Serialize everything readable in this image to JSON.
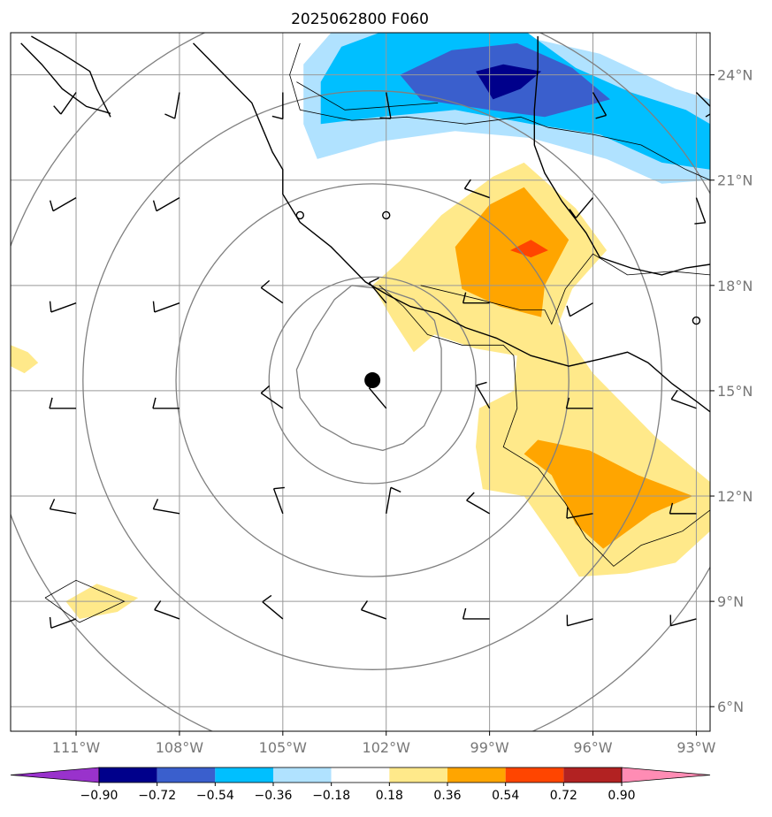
{
  "title": "2025062800 F060",
  "map": {
    "lon_range": [
      -112.9,
      -92.6
    ],
    "lat_range": [
      5.3,
      25.2
    ],
    "lon_ticks": [
      -111,
      -108,
      -105,
      -102,
      -99,
      -96,
      -93
    ],
    "lon_tick_labels": [
      "111°W",
      "108°W",
      "105°W",
      "102°W",
      "99°W",
      "96°W",
      "93°W"
    ],
    "lat_ticks": [
      6,
      9,
      12,
      15,
      18,
      21,
      24
    ],
    "lat_tick_labels": [
      "6°N",
      "9°N",
      "12°N",
      "15°N",
      "18°N",
      "21°N",
      "24°N"
    ],
    "gridlines": true,
    "center_marker": {
      "lon": -102.4,
      "lat": 15.3
    },
    "range_rings_deg": [
      3,
      5.7,
      8.4,
      11.2
    ],
    "contour_ring": [
      [
        -103.0,
        18.0
      ],
      [
        -102.1,
        17.9
      ],
      [
        -101.2,
        17.6
      ],
      [
        -100.6,
        17.0
      ],
      [
        -100.4,
        16.2
      ],
      [
        -100.4,
        15.0
      ],
      [
        -100.9,
        14.0
      ],
      [
        -101.5,
        13.5
      ],
      [
        -102.1,
        13.3
      ],
      [
        -103.0,
        13.5
      ],
      [
        -103.9,
        14.0
      ],
      [
        -104.5,
        14.8
      ],
      [
        -104.6,
        15.6
      ],
      [
        -104.1,
        16.7
      ],
      [
        -103.5,
        17.6
      ],
      [
        -103.0,
        18.0
      ]
    ]
  },
  "colorbar": {
    "levels": [
      "−0.90",
      "−0.72",
      "−0.54",
      "−0.36",
      "−0.18",
      "0.18",
      "0.36",
      "0.54",
      "0.72",
      "0.90"
    ],
    "colors": [
      "#9932cc",
      "#00008b",
      "#3a5fcd",
      "#00bfff",
      "#b0e2ff",
      "#ffffff",
      "#ffe98a",
      "#ffa500",
      "#ff4500",
      "#b22222",
      "#ff8cb4"
    ]
  },
  "shading": [
    {
      "level": "-0.36",
      "color": "#b0e2ff",
      "poly": [
        [
          -104.4,
          24.3
        ],
        [
          -103.6,
          25.2
        ],
        [
          -98.5,
          25.2
        ],
        [
          -95.8,
          24.6
        ],
        [
          -93.6,
          23.6
        ],
        [
          -92.6,
          23.3
        ],
        [
          -92.6,
          21.0
        ],
        [
          -94.0,
          20.9
        ],
        [
          -95.6,
          21.6
        ],
        [
          -97.8,
          22.2
        ],
        [
          -100.0,
          22.4
        ],
        [
          -102.2,
          22.1
        ],
        [
          -104.0,
          21.6
        ],
        [
          -104.4,
          22.6
        ]
      ]
    },
    {
      "level": "-0.54",
      "color": "#00bfff",
      "poly": [
        [
          -103.9,
          23.8
        ],
        [
          -103.3,
          24.8
        ],
        [
          -102.2,
          25.2
        ],
        [
          -97.9,
          25.2
        ],
        [
          -96.5,
          24.2
        ],
        [
          -94.9,
          23.5
        ],
        [
          -93.3,
          23.0
        ],
        [
          -92.6,
          22.6
        ],
        [
          -92.6,
          21.3
        ],
        [
          -94.0,
          21.5
        ],
        [
          -95.8,
          22.3
        ],
        [
          -97.8,
          22.6
        ],
        [
          -100.0,
          23.0
        ],
        [
          -102.2,
          22.8
        ],
        [
          -103.9,
          22.6
        ]
      ]
    },
    {
      "level": "-0.72",
      "color": "#3a5fcd",
      "poly": [
        [
          -101.6,
          24.0
        ],
        [
          -100.1,
          24.7
        ],
        [
          -98.2,
          24.9
        ],
        [
          -96.6,
          24.2
        ],
        [
          -95.5,
          23.3
        ],
        [
          -97.4,
          22.8
        ],
        [
          -99.0,
          23.0
        ],
        [
          -101.0,
          23.3
        ]
      ]
    },
    {
      "level": "-0.90",
      "color": "#00008b",
      "poly": [
        [
          -99.4,
          24.1
        ],
        [
          -98.6,
          24.3
        ],
        [
          -97.5,
          24.1
        ],
        [
          -98.1,
          23.6
        ],
        [
          -98.9,
          23.3
        ]
      ]
    },
    {
      "level": "0.18",
      "color": "#ffe98a",
      "poly": [
        [
          -100.4,
          20.0
        ],
        [
          -98.9,
          21.1
        ],
        [
          -98.0,
          21.5
        ],
        [
          -96.5,
          20.2
        ],
        [
          -95.6,
          19.0
        ],
        [
          -96.6,
          17.9
        ],
        [
          -97.0,
          16.9
        ],
        [
          -96.0,
          15.5
        ],
        [
          -94.2,
          13.7
        ],
        [
          -92.6,
          12.4
        ],
        [
          -92.6,
          11.0
        ],
        [
          -93.6,
          10.1
        ],
        [
          -95.0,
          9.8
        ],
        [
          -96.4,
          9.7
        ],
        [
          -97.0,
          10.6
        ],
        [
          -98.0,
          12.0
        ],
        [
          -99.2,
          12.2
        ],
        [
          -99.4,
          13.4
        ],
        [
          -99.3,
          14.5
        ],
        [
          -98.3,
          15.0
        ],
        [
          -98.2,
          16.0
        ],
        [
          -99.4,
          16.2
        ],
        [
          -100.6,
          16.6
        ],
        [
          -101.2,
          16.1
        ],
        [
          -101.8,
          17.0
        ],
        [
          -102.4,
          18.0
        ],
        [
          -101.6,
          18.7
        ]
      ]
    },
    {
      "level": "0.36",
      "color": "#ffa500",
      "poly": [
        [
          -100.0,
          19.1
        ],
        [
          -99.0,
          20.3
        ],
        [
          -98.0,
          20.8
        ],
        [
          -96.7,
          19.3
        ],
        [
          -97.4,
          18.0
        ],
        [
          -97.5,
          17.1
        ],
        [
          -98.7,
          17.4
        ],
        [
          -99.8,
          17.9
        ]
      ]
    },
    {
      "level": "0.36",
      "color": "#ffa500",
      "poly": [
        [
          -97.6,
          13.6
        ],
        [
          -96.1,
          13.3
        ],
        [
          -94.7,
          12.6
        ],
        [
          -93.1,
          12.0
        ],
        [
          -94.3,
          11.5
        ],
        [
          -95.7,
          10.5
        ],
        [
          -96.5,
          11.2
        ],
        [
          -97.2,
          12.6
        ],
        [
          -98.0,
          13.2
        ]
      ]
    },
    {
      "level": "0.54",
      "color": "#ff4500",
      "poly": [
        [
          -98.4,
          19.0
        ],
        [
          -97.8,
          19.3
        ],
        [
          -97.3,
          19.0
        ],
        [
          -97.8,
          18.8
        ]
      ]
    },
    {
      "level": "0.18",
      "color": "#ffe98a",
      "poly": [
        [
          -111.3,
          9.0
        ],
        [
          -110.4,
          9.5
        ],
        [
          -109.2,
          9.1
        ],
        [
          -109.8,
          8.7
        ],
        [
          -110.9,
          8.5
        ]
      ]
    },
    {
      "level": "0.18",
      "color": "#ffe98a",
      "poly": [
        [
          -112.9,
          16.3
        ],
        [
          -112.4,
          16.1
        ],
        [
          -112.1,
          15.8
        ],
        [
          -112.5,
          15.5
        ],
        [
          -112.9,
          15.7
        ]
      ]
    }
  ],
  "coast_lines": [
    [
      [
        -112.6,
        24.9
      ],
      [
        -112.0,
        24.3
      ],
      [
        -111.4,
        23.6
      ],
      [
        -110.7,
        23.1
      ],
      [
        -110.0,
        22.9
      ]
    ],
    [
      [
        -112.3,
        25.1
      ],
      [
        -111.4,
        24.6
      ],
      [
        -110.6,
        24.1
      ],
      [
        -110.4,
        23.6
      ],
      [
        -110.0,
        22.8
      ]
    ],
    [
      [
        -107.6,
        24.9
      ],
      [
        -106.7,
        24.0
      ],
      [
        -105.9,
        23.2
      ],
      [
        -105.6,
        22.5
      ],
      [
        -105.3,
        21.8
      ],
      [
        -105.0,
        21.3
      ],
      [
        -105.0,
        20.6
      ],
      [
        -104.5,
        19.8
      ],
      [
        -103.6,
        19.1
      ],
      [
        -102.6,
        18.1
      ],
      [
        -101.9,
        17.7
      ],
      [
        -101.3,
        17.4
      ],
      [
        -100.5,
        17.2
      ],
      [
        -99.7,
        16.8
      ],
      [
        -98.8,
        16.5
      ],
      [
        -97.8,
        16.0
      ],
      [
        -96.7,
        15.7
      ],
      [
        -95.8,
        15.9
      ],
      [
        -95.0,
        16.1
      ],
      [
        -94.4,
        15.8
      ],
      [
        -93.7,
        15.2
      ],
      [
        -93.0,
        14.7
      ],
      [
        -92.6,
        14.4
      ]
    ],
    [
      [
        -97.6,
        25.1
      ],
      [
        -97.6,
        24.2
      ],
      [
        -97.7,
        23.0
      ],
      [
        -97.7,
        22.0
      ],
      [
        -97.4,
        21.2
      ],
      [
        -96.9,
        20.4
      ],
      [
        -96.2,
        19.5
      ],
      [
        -95.8,
        18.8
      ],
      [
        -94.9,
        18.5
      ],
      [
        -94.0,
        18.3
      ],
      [
        -93.3,
        18.5
      ],
      [
        -92.6,
        18.6
      ]
    ]
  ],
  "border_lines": [
    [
      [
        -104.5,
        24.9
      ],
      [
        -104.8,
        24.0
      ],
      [
        -104.5,
        23.0
      ],
      [
        -103.0,
        22.7
      ],
      [
        -101.4,
        22.8
      ],
      [
        -99.7,
        22.6
      ],
      [
        -98.1,
        22.8
      ],
      [
        -97.3,
        22.5
      ],
      [
        -96.0,
        22.3
      ],
      [
        -94.6,
        22.0
      ],
      [
        -93.3,
        21.3
      ],
      [
        -92.6,
        21.0
      ]
    ],
    [
      [
        -104.6,
        23.8
      ],
      [
        -103.2,
        23.0
      ],
      [
        -100.5,
        23.2
      ]
    ],
    [
      [
        -102.2,
        18.0
      ],
      [
        -101.5,
        17.4
      ],
      [
        -100.8,
        16.6
      ],
      [
        -99.8,
        16.3
      ],
      [
        -98.6,
        16.3
      ],
      [
        -98.3,
        16.0
      ],
      [
        -98.2,
        14.5
      ],
      [
        -98.6,
        13.4
      ],
      [
        -97.6,
        12.8
      ],
      [
        -96.8,
        11.8
      ],
      [
        -96.2,
        10.8
      ],
      [
        -95.4,
        10.0
      ],
      [
        -94.6,
        10.6
      ],
      [
        -93.4,
        11.0
      ],
      [
        -92.6,
        11.6
      ]
    ],
    [
      [
        -101.0,
        18.0
      ],
      [
        -99.3,
        17.6
      ],
      [
        -98.1,
        17.3
      ],
      [
        -97.4,
        17.3
      ],
      [
        -97.2,
        16.9
      ],
      [
        -96.8,
        17.9
      ],
      [
        -96.0,
        18.9
      ],
      [
        -95.0,
        18.3
      ],
      [
        -93.7,
        18.4
      ],
      [
        -92.6,
        18.3
      ]
    ],
    [
      [
        -111.9,
        9.1
      ],
      [
        -111.0,
        9.6
      ],
      [
        -109.6,
        9.0
      ],
      [
        -110.9,
        8.4
      ],
      [
        -111.9,
        9.1
      ]
    ]
  ],
  "islands": [
    {
      "lon": -104.5,
      "lat": 20.0
    },
    {
      "lon": -102.0,
      "lat": 20.0
    },
    {
      "lon": -93.0,
      "lat": 17.0
    }
  ],
  "wind_barbs": [
    {
      "lon": -111.0,
      "lat": 23.5,
      "dir": 215,
      "n": 1
    },
    {
      "lon": -108.0,
      "lat": 23.5,
      "dir": 190,
      "n": 1
    },
    {
      "lon": -105.0,
      "lat": 23.5,
      "dir": 180,
      "n": 1
    },
    {
      "lon": -102.0,
      "lat": 23.5,
      "dir": 170,
      "n": 1
    },
    {
      "lon": -96.0,
      "lat": 23.5,
      "dir": 150,
      "n": 1
    },
    {
      "lon": -93.0,
      "lat": 23.5,
      "dir": 135,
      "n": 1
    },
    {
      "lon": -111.0,
      "lat": 20.5,
      "dir": 240,
      "n": 1
    },
    {
      "lon": -108.0,
      "lat": 20.5,
      "dir": 240,
      "n": 1
    },
    {
      "lon": -99.0,
      "lat": 20.5,
      "dir": 290,
      "n": 1
    },
    {
      "lon": -96.0,
      "lat": 20.5,
      "dir": 220,
      "n": 1
    },
    {
      "lon": -93.0,
      "lat": 20.5,
      "dir": 160,
      "n": 1
    },
    {
      "lon": -111.0,
      "lat": 17.5,
      "dir": 250,
      "n": 1
    },
    {
      "lon": -108.0,
      "lat": 17.5,
      "dir": 250,
      "n": 1
    },
    {
      "lon": -105.0,
      "lat": 17.5,
      "dir": 305,
      "n": 1
    },
    {
      "lon": -102.0,
      "lat": 17.5,
      "dir": 320,
      "n": 1
    },
    {
      "lon": -99.0,
      "lat": 17.5,
      "dir": 270,
      "n": 1
    },
    {
      "lon": -96.0,
      "lat": 17.5,
      "dir": 240,
      "n": 1
    },
    {
      "lon": -111.0,
      "lat": 14.5,
      "dir": 270,
      "n": 1
    },
    {
      "lon": -108.0,
      "lat": 14.5,
      "dir": 270,
      "n": 1
    },
    {
      "lon": -105.0,
      "lat": 14.5,
      "dir": 305,
      "n": 1
    },
    {
      "lon": -102.0,
      "lat": 14.5,
      "dir": 320,
      "n": 1
    },
    {
      "lon": -99.0,
      "lat": 14.5,
      "dir": 330,
      "n": 1
    },
    {
      "lon": -96.0,
      "lat": 14.5,
      "dir": 270,
      "n": 1
    },
    {
      "lon": -93.0,
      "lat": 14.5,
      "dir": 290,
      "n": 1
    },
    {
      "lon": -111.0,
      "lat": 11.5,
      "dir": 280,
      "n": 1
    },
    {
      "lon": -108.0,
      "lat": 11.5,
      "dir": 280,
      "n": 1
    },
    {
      "lon": -105.0,
      "lat": 11.5,
      "dir": 340,
      "n": 1
    },
    {
      "lon": -102.0,
      "lat": 11.5,
      "dir": 10,
      "n": 1
    },
    {
      "lon": -99.0,
      "lat": 11.5,
      "dir": 300,
      "n": 1
    },
    {
      "lon": -96.0,
      "lat": 11.5,
      "dir": 260,
      "n": 1
    },
    {
      "lon": -93.0,
      "lat": 11.5,
      "dir": 270,
      "n": 1
    },
    {
      "lon": -111.0,
      "lat": 8.5,
      "dir": 250,
      "n": 1
    },
    {
      "lon": -108.0,
      "lat": 8.5,
      "dir": 290,
      "n": 1
    },
    {
      "lon": -105.0,
      "lat": 8.5,
      "dir": 310,
      "n": 1
    },
    {
      "lon": -102.0,
      "lat": 8.5,
      "dir": 290,
      "n": 1
    },
    {
      "lon": -99.0,
      "lat": 8.5,
      "dir": 270,
      "n": 1
    },
    {
      "lon": -96.0,
      "lat": 8.5,
      "dir": 255,
      "n": 1
    },
    {
      "lon": -93.0,
      "lat": 8.5,
      "dir": 255,
      "n": 1
    }
  ]
}
